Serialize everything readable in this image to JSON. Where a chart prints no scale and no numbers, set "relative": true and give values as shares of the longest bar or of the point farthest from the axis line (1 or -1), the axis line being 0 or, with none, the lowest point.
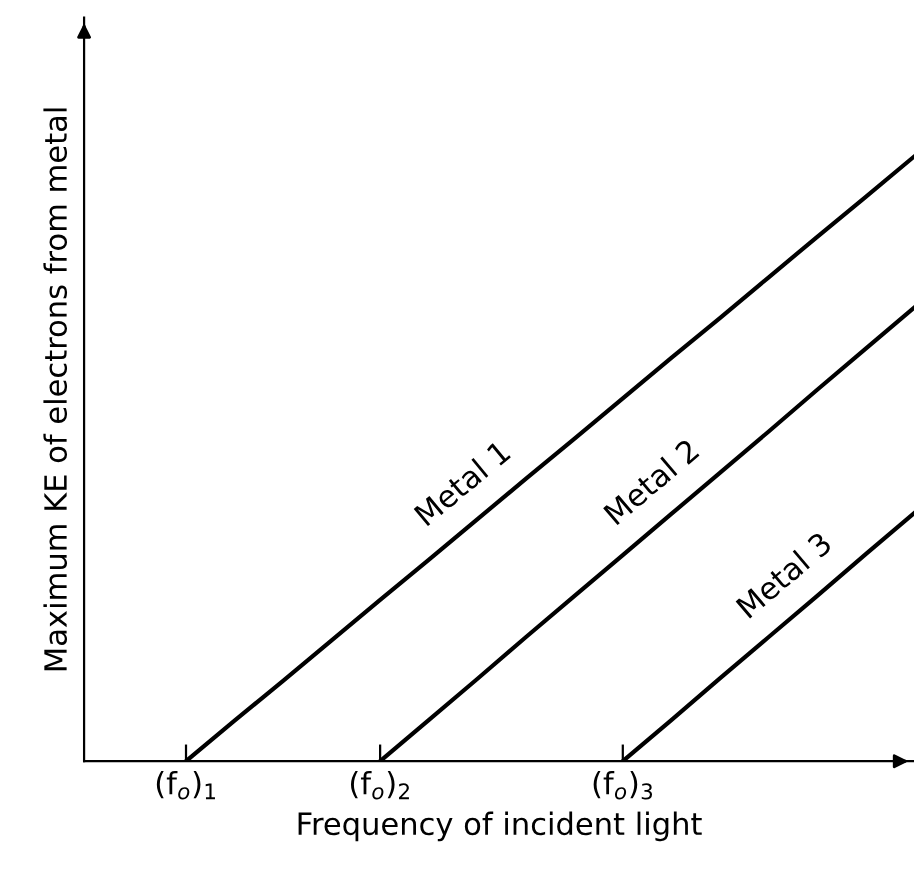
{
  "chart_data": {
    "type": "line",
    "relative": true,
    "xlabel": "Frequency of incident light",
    "ylabel": "Maximum KE of electrons from metal",
    "categories": [
      "(f$_{o}$)$_{1}$",
      null,
      null,
      null,
      "(f$_{o}$)$_{2}$",
      null,
      null,
      null,
      null,
      "(f$_{o}$)$_{3}$",
      null,
      null,
      null,
      null,
      null,
      null
    ],
    "series": [
      {
        "color": "#000000",
        "values": [
          0,
          0.067,
          0.133,
          0.2,
          0.267,
          0.333,
          0.4,
          0.467,
          0.533,
          0.6,
          0.667,
          0.733,
          0.8,
          0.867,
          0.933,
          1
        ]
      },
      {
        "color": "#000000",
        "values": [
          null,
          null,
          null,
          null,
          0,
          0.068,
          0.136,
          0.205,
          0.273,
          0.341,
          0.409,
          0.477,
          0.545,
          0.614,
          0.682,
          0.75
        ]
      },
      {
        "color": "#000000",
        "values": [
          null,
          null,
          null,
          null,
          null,
          null,
          null,
          null,
          null,
          0,
          0.068,
          0.137,
          0.205,
          0.273,
          0.342,
          0.41
        ]
      }
    ],
    "annotations": [
      "Metal 1",
      "Metal 2",
      "Metal 3"
    ],
    "legend": false,
    "marker": "none",
    "line_style": "solid"
  }
}
